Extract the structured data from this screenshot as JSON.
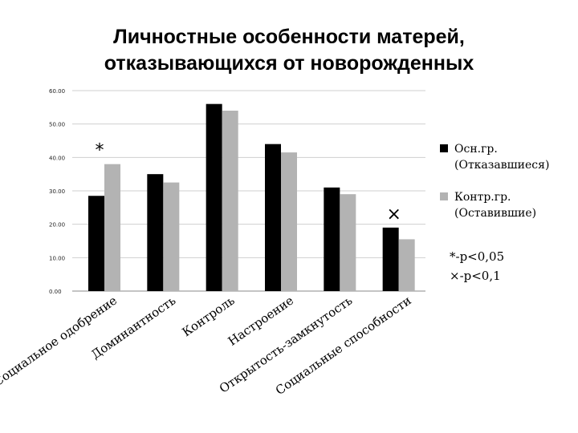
{
  "chart_data": {
    "type": "bar",
    "title_lines": [
      "Личностные особенности матерей,",
      "отказывающихся от новорожденных"
    ],
    "categories": [
      "Социальное одобрение",
      "Доминантность",
      "Контроль",
      "Настроение",
      "Открытость-замкнутость",
      "Социальные способности"
    ],
    "series": [
      {
        "name": "Осн.гр. (Отказавшиеся)",
        "name_lines": [
          "Осн.гр.",
          "(Отказавшиеся)"
        ],
        "color": "#000000",
        "values": [
          28.5,
          35.0,
          56.0,
          44.0,
          31.0,
          19.0
        ]
      },
      {
        "name": "Контр.гр. (Оставившие)",
        "name_lines": [
          "Контр.гр.",
          "(Оставившие)"
        ],
        "color": "#b3b3b3",
        "values": [
          38.0,
          32.5,
          54.0,
          41.5,
          29.0,
          15.5
        ]
      }
    ],
    "ylim": [
      0,
      60
    ],
    "yticks": [
      "0.00",
      "10.00",
      "20.00",
      "30.00",
      "40.00",
      "50.00",
      "60.00"
    ],
    "grid": true,
    "legend_position": "right",
    "markers": [
      {
        "category": "Социальное одобрение",
        "symbol": "*"
      },
      {
        "category": "Социальные способности",
        "symbol": "×"
      }
    ],
    "notes": [
      "*-p<0,05",
      "×-p<0,1"
    ]
  }
}
